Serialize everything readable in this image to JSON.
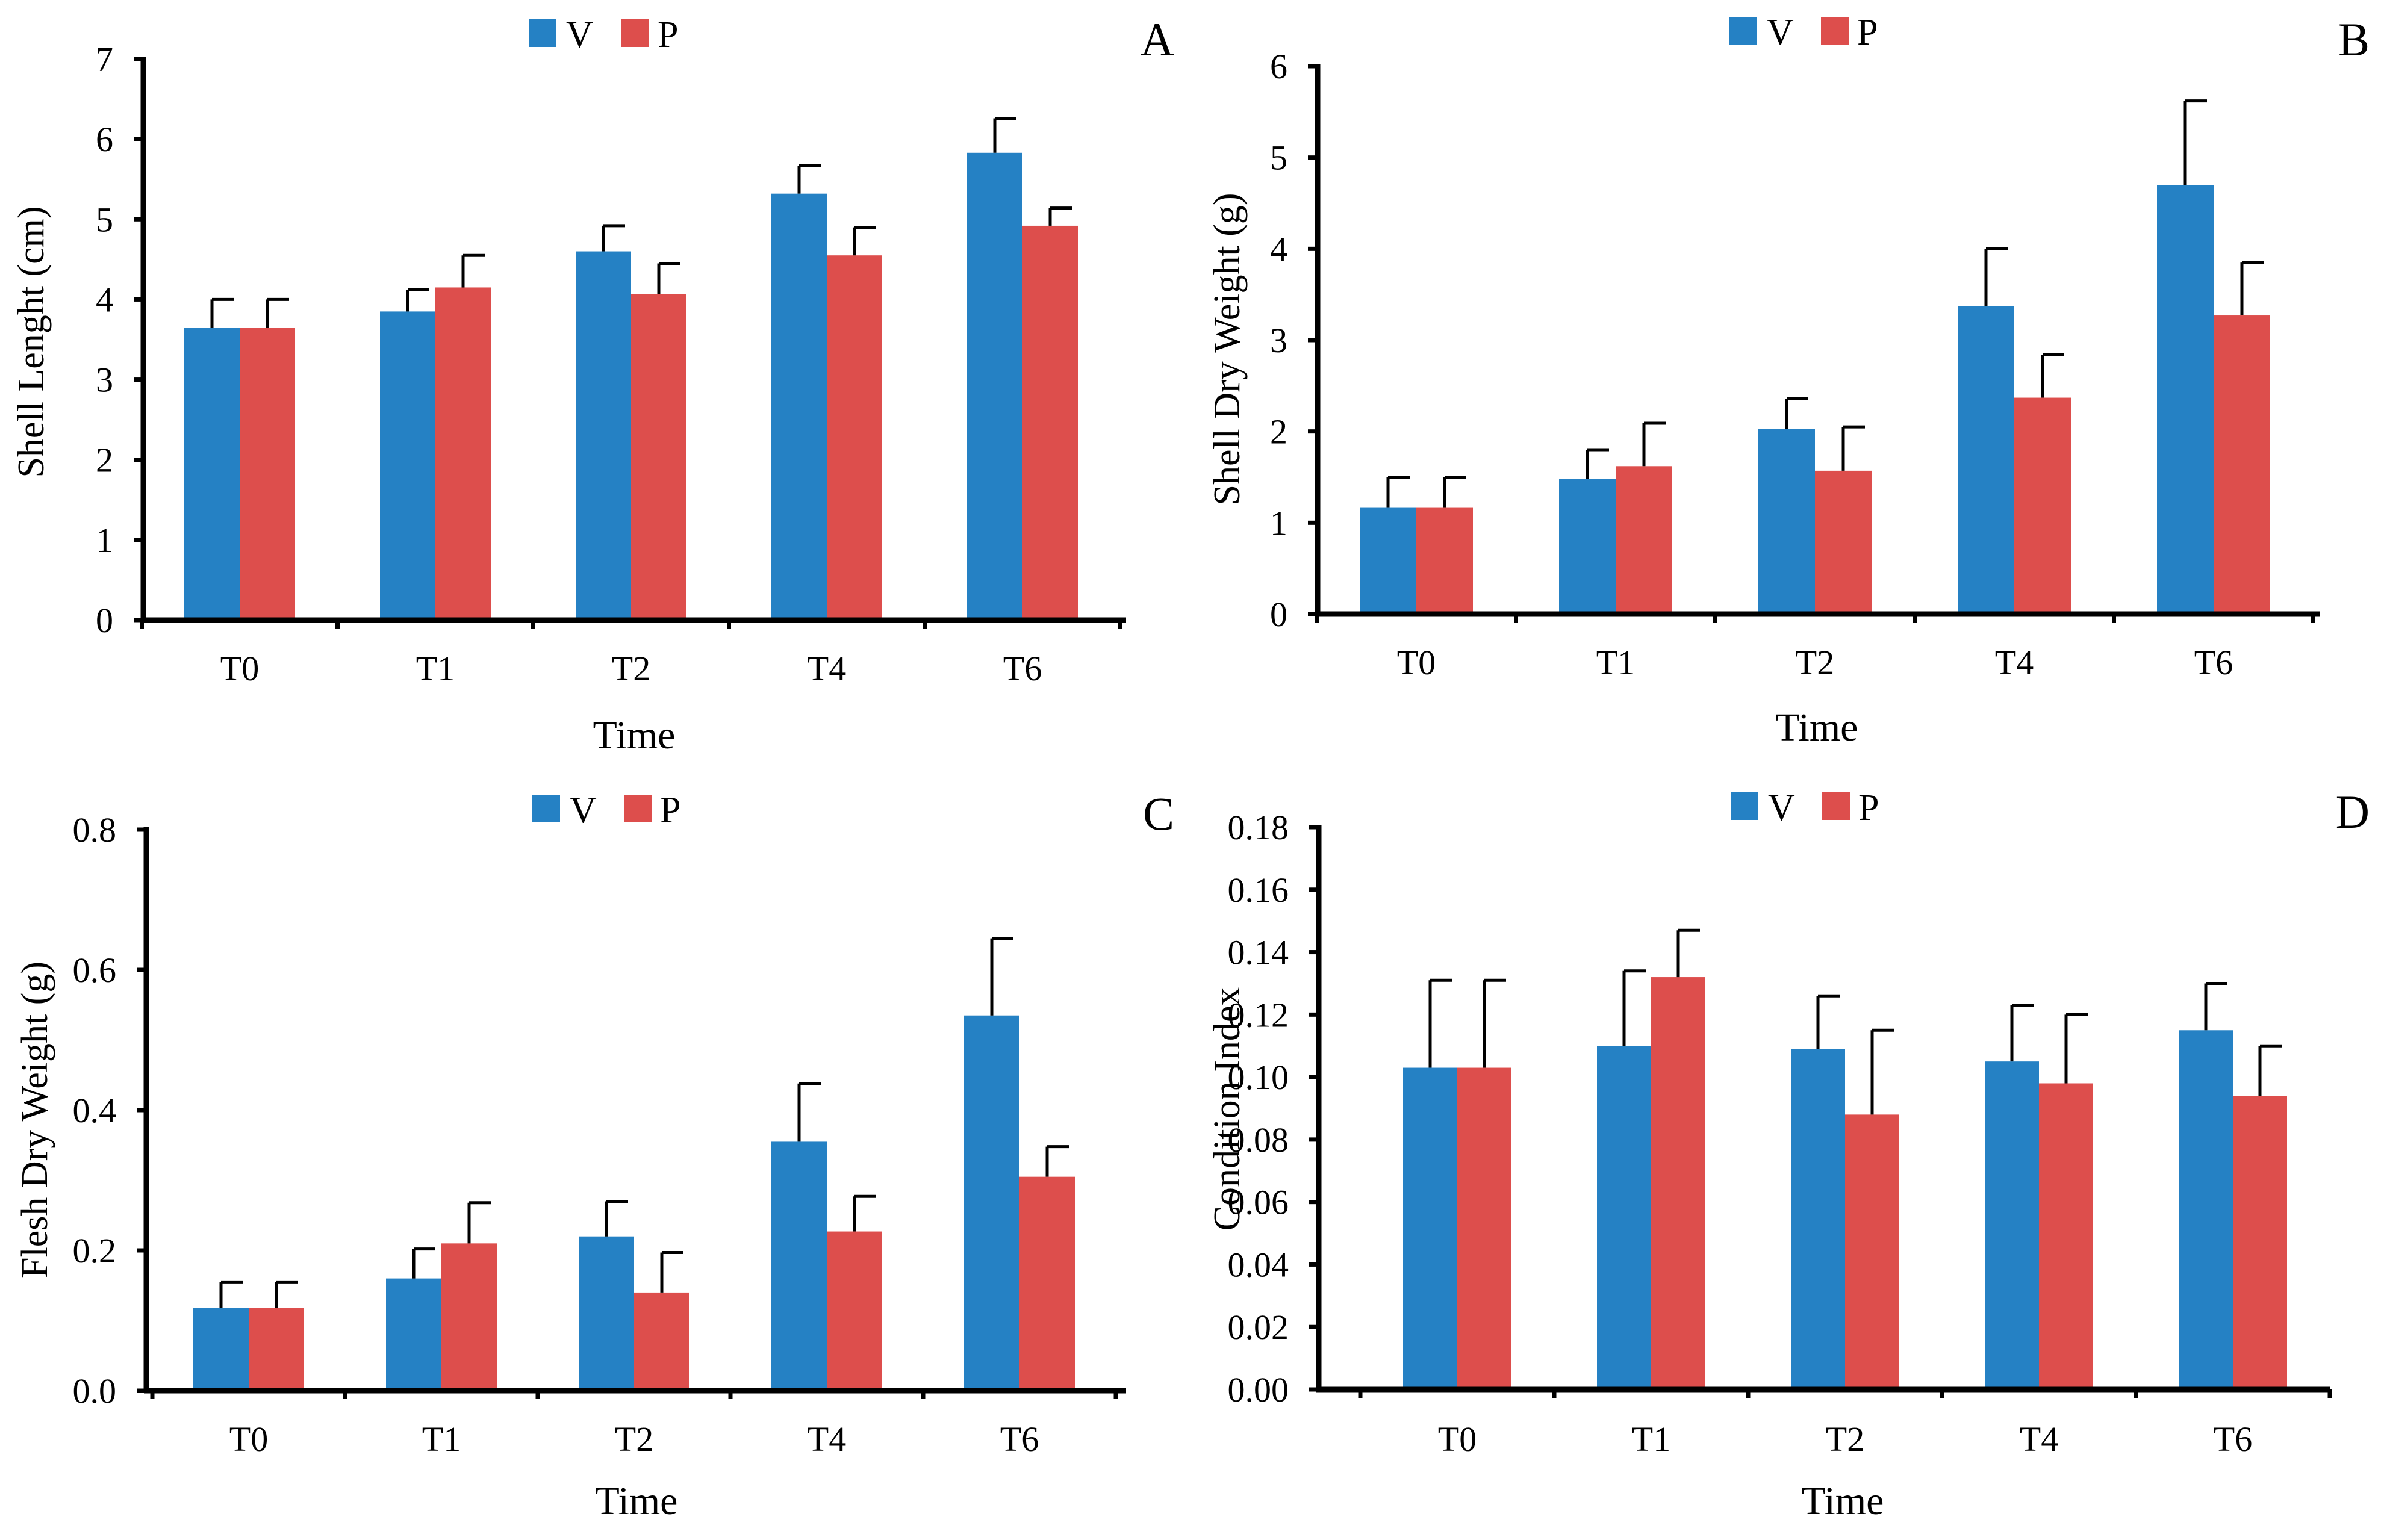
{
  "figure": {
    "colors": {
      "V": "#2581c4",
      "P": "#dd4e4c",
      "axis": "#000000"
    }
  },
  "chart_data": [
    {
      "panel": "A",
      "type": "bar",
      "legend": [
        "V",
        "P"
      ],
      "categories": [
        "T0",
        "T1",
        "T2",
        "T4",
        "T6"
      ],
      "series": [
        {
          "name": "V",
          "values": [
            3.65,
            3.85,
            4.6,
            5.32,
            5.83
          ],
          "errors": [
            0.35,
            0.27,
            0.32,
            0.35,
            0.43
          ]
        },
        {
          "name": "P",
          "values": [
            3.65,
            4.15,
            4.07,
            4.55,
            4.92
          ],
          "errors": [
            0.35,
            0.4,
            0.38,
            0.35,
            0.22
          ]
        }
      ],
      "xlabel": "Time",
      "ylabel": "Shell Lenght (cm)",
      "ylim": [
        0,
        7
      ],
      "yticks": [
        "0",
        "1",
        "2",
        "3",
        "4",
        "5",
        "6",
        "7"
      ]
    },
    {
      "panel": "B",
      "type": "bar",
      "legend": [
        "V",
        "P"
      ],
      "categories": [
        "T0",
        "T1",
        "T2",
        "T4",
        "T6"
      ],
      "series": [
        {
          "name": "V",
          "values": [
            1.17,
            1.48,
            2.03,
            3.37,
            4.7
          ],
          "errors": [
            0.33,
            0.32,
            0.33,
            0.63,
            0.92
          ]
        },
        {
          "name": "P",
          "values": [
            1.17,
            1.62,
            1.57,
            2.37,
            3.27
          ],
          "errors": [
            0.33,
            0.47,
            0.48,
            0.47,
            0.58
          ]
        }
      ],
      "xlabel": "Time",
      "ylabel": "Shell Dry Weight (g)",
      "ylim": [
        0,
        6
      ],
      "yticks": [
        "0",
        "1",
        "2",
        "3",
        "4",
        "5",
        "6"
      ]
    },
    {
      "panel": "C",
      "type": "bar",
      "legend": [
        "V",
        "P"
      ],
      "categories": [
        "T0",
        "T1",
        "T2",
        "T4",
        "T6"
      ],
      "series": [
        {
          "name": "V",
          "values": [
            0.118,
            0.16,
            0.22,
            0.355,
            0.535
          ],
          "errors": [
            0.037,
            0.042,
            0.05,
            0.083,
            0.11
          ]
        },
        {
          "name": "P",
          "values": [
            0.118,
            0.21,
            0.14,
            0.227,
            0.305
          ],
          "errors": [
            0.037,
            0.058,
            0.057,
            0.05,
            0.043
          ]
        }
      ],
      "xlabel": "Time",
      "ylabel": "Flesh Dry Weight (g)",
      "ylim": [
        0,
        0.8
      ],
      "yticks": [
        "0.0",
        "0.2",
        "0.4",
        "0.6",
        "0.8"
      ]
    },
    {
      "panel": "D",
      "type": "bar",
      "legend": [
        "V",
        "P"
      ],
      "categories": [
        "T0",
        "T1",
        "T2",
        "T4",
        "T6"
      ],
      "series": [
        {
          "name": "V",
          "values": [
            0.103,
            0.11,
            0.109,
            0.105,
            0.115
          ],
          "errors": [
            0.028,
            0.024,
            0.017,
            0.018,
            0.015
          ]
        },
        {
          "name": "P",
          "values": [
            0.103,
            0.132,
            0.088,
            0.098,
            0.094
          ],
          "errors": [
            0.028,
            0.015,
            0.027,
            0.022,
            0.016
          ]
        }
      ],
      "xlabel": "Time",
      "ylabel": "Condition Index",
      "ylim": [
        0,
        0.18
      ],
      "yticks": [
        "0.00",
        "0.02",
        "0.04",
        "0.06",
        "0.08",
        "0.10",
        "0.12",
        "0.14",
        "0.16",
        "0.18"
      ]
    }
  ]
}
